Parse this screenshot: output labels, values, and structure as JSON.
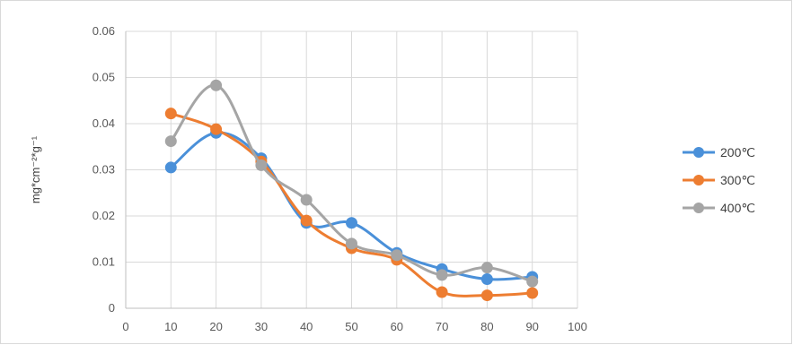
{
  "chart_data": {
    "type": "line",
    "title": "",
    "xlabel": "",
    "ylabel": "mg*cm⁻²*g⁻¹",
    "xlim": [
      0,
      100
    ],
    "ylim": [
      0,
      0.06
    ],
    "x_ticks": [
      "0",
      "10",
      "20",
      "30",
      "40",
      "50",
      "60",
      "70",
      "80",
      "90",
      "100"
    ],
    "y_ticks": [
      "0",
      "0.01",
      "0.02",
      "0.03",
      "0.04",
      "0.05",
      "0.06"
    ],
    "grid": true,
    "legend_position": "right",
    "smooth": true,
    "x": [
      10,
      20,
      30,
      40,
      50,
      60,
      70,
      80,
      90
    ],
    "series": [
      {
        "name": "200℃",
        "color": "#4a90d9",
        "values": [
          0.0305,
          0.038,
          0.0325,
          0.0185,
          0.0185,
          0.012,
          0.0085,
          0.0063,
          0.0068
        ]
      },
      {
        "name": "300℃",
        "color": "#ed7d31",
        "values": [
          0.0422,
          0.0388,
          0.0318,
          0.019,
          0.013,
          0.0105,
          0.0035,
          0.0028,
          0.0033
        ]
      },
      {
        "name": "400℃",
        "color": "#a5a5a5",
        "values": [
          0.0362,
          0.0483,
          0.031,
          0.0235,
          0.014,
          0.0115,
          0.0072,
          0.0088,
          0.0058
        ]
      }
    ]
  }
}
